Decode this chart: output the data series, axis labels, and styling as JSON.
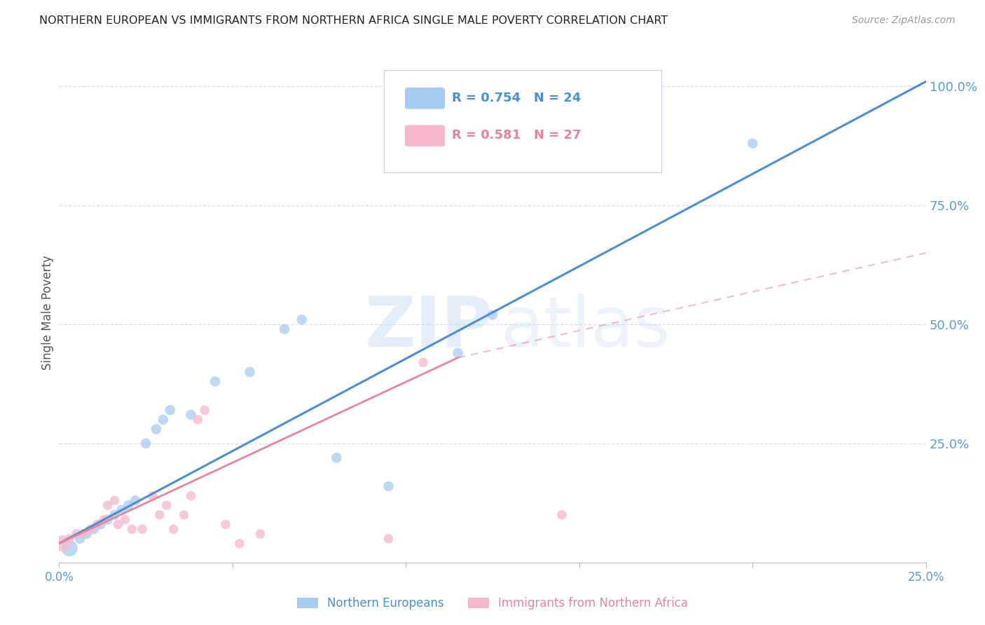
{
  "title": "NORTHERN EUROPEAN VS IMMIGRANTS FROM NORTHERN AFRICA SINGLE MALE POVERTY CORRELATION CHART",
  "source": "Source: ZipAtlas.com",
  "ylabel": "Single Male Poverty",
  "y_ticks": [
    0.0,
    0.25,
    0.5,
    0.75,
    1.0
  ],
  "y_tick_labels_right": [
    "",
    "25.0%",
    "50.0%",
    "75.0%",
    "100.0%"
  ],
  "x_ticks": [
    0.0,
    0.05,
    0.1,
    0.15,
    0.2,
    0.25
  ],
  "x_tick_labels": [
    "0.0%",
    "",
    "",
    "",
    "",
    "25.0%"
  ],
  "legend_entries": [
    {
      "label_r": "0.754",
      "label_n": "24",
      "color": "#A8CBF0"
    },
    {
      "label_r": "0.581",
      "label_n": "27",
      "color": "#F5B8CC"
    }
  ],
  "legend_bottom": [
    {
      "label": "Northern Europeans",
      "color": "#A8CBF0"
    },
    {
      "label": "Immigrants from Northern Africa",
      "color": "#F5B8CC"
    }
  ],
  "watermark_zip": "ZIP",
  "watermark_atlas": "atlas",
  "blue_scatter": [
    [
      0.003,
      0.03
    ],
    [
      0.006,
      0.05
    ],
    [
      0.008,
      0.06
    ],
    [
      0.01,
      0.07
    ],
    [
      0.012,
      0.08
    ],
    [
      0.014,
      0.09
    ],
    [
      0.016,
      0.1
    ],
    [
      0.018,
      0.11
    ],
    [
      0.02,
      0.12
    ],
    [
      0.022,
      0.13
    ],
    [
      0.025,
      0.25
    ],
    [
      0.028,
      0.28
    ],
    [
      0.03,
      0.3
    ],
    [
      0.032,
      0.32
    ],
    [
      0.038,
      0.31
    ],
    [
      0.045,
      0.38
    ],
    [
      0.055,
      0.4
    ],
    [
      0.065,
      0.49
    ],
    [
      0.07,
      0.51
    ],
    [
      0.08,
      0.22
    ],
    [
      0.095,
      0.16
    ],
    [
      0.115,
      0.44
    ],
    [
      0.125,
      0.52
    ],
    [
      0.2,
      0.88
    ]
  ],
  "blue_large_indices": [
    0
  ],
  "pink_scatter": [
    [
      0.001,
      0.04
    ],
    [
      0.003,
      0.05
    ],
    [
      0.005,
      0.06
    ],
    [
      0.007,
      0.06
    ],
    [
      0.009,
      0.07
    ],
    [
      0.011,
      0.08
    ],
    [
      0.013,
      0.09
    ],
    [
      0.014,
      0.12
    ],
    [
      0.016,
      0.13
    ],
    [
      0.017,
      0.08
    ],
    [
      0.019,
      0.09
    ],
    [
      0.021,
      0.07
    ],
    [
      0.024,
      0.07
    ],
    [
      0.027,
      0.14
    ],
    [
      0.029,
      0.1
    ],
    [
      0.031,
      0.12
    ],
    [
      0.033,
      0.07
    ],
    [
      0.036,
      0.1
    ],
    [
      0.038,
      0.14
    ],
    [
      0.04,
      0.3
    ],
    [
      0.042,
      0.32
    ],
    [
      0.048,
      0.08
    ],
    [
      0.052,
      0.04
    ],
    [
      0.058,
      0.06
    ],
    [
      0.095,
      0.05
    ],
    [
      0.105,
      0.42
    ],
    [
      0.145,
      0.1
    ]
  ],
  "pink_large_indices": [
    0
  ],
  "blue_line": {
    "x": [
      0.0,
      0.25
    ],
    "y": [
      0.04,
      1.01
    ]
  },
  "pink_line_solid": {
    "x": [
      0.0,
      0.115
    ],
    "y": [
      0.04,
      0.43
    ]
  },
  "pink_line_dashed": {
    "x": [
      0.115,
      0.25
    ],
    "y": [
      0.43,
      0.65
    ]
  },
  "bg_color": "#FFFFFF",
  "grid_color": "#DCDCE8",
  "blue_scatter_color": "#A8CBF0",
  "pink_scatter_color": "#F5B8CC",
  "blue_line_color": "#4A8FD4",
  "pink_line_color": "#E8849A",
  "title_color": "#222222",
  "right_tick_color": "#5B9BD5",
  "bottom_tick_color": "#5B9BD5",
  "ylabel_color": "#555555"
}
